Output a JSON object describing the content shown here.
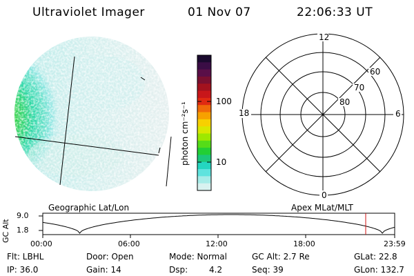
{
  "header": {
    "instrument": "Ultraviolet Imager",
    "date": "01 Nov 07",
    "time": "22:06:33 UT"
  },
  "colorbar": {
    "unit_label": "photon cm⁻²s⁻¹",
    "ticks": [
      "100",
      "10"
    ],
    "colors": [
      "#1a0a2e",
      "#3a0d45",
      "#5a0f48",
      "#7a1030",
      "#a3121e",
      "#c8161a",
      "#e02a12",
      "#f06a0a",
      "#f7a100",
      "#f7d000",
      "#d9e800",
      "#9ee800",
      "#55dc18",
      "#22cf35",
      "#1cc77a",
      "#24d6c0",
      "#5fe3de",
      "#a6ece8",
      "#d8f2f0"
    ]
  },
  "polar_grid": {
    "labels": {
      "top": "12",
      "left": "18",
      "right": "6",
      "bottom": "0"
    },
    "rings": [
      "60",
      "70",
      "80"
    ]
  },
  "timeline": {
    "left_title": "Geographic Lat/Lon",
    "right_title": "Apex  MLat/MLT",
    "axis_title": "GC Alt",
    "y_ticks": [
      "9.0",
      "1.8"
    ],
    "x_ticks": [
      "00:00",
      "06:00",
      "12:00",
      "18:00",
      "23:59"
    ],
    "marker_color": "#d01010"
  },
  "info": {
    "flt": "Flt: LBHL",
    "door": "Door: Open",
    "mode": "Mode: Normal",
    "gcalt": "GC Alt: 2.7 Re",
    "glat": "GLat:  22.8",
    "ip": "IP: 36.0",
    "gain": "Gain: 14",
    "dsp_label": "Dsp:",
    "dsp_value": "4.2",
    "seq": "Seq: 39",
    "glon": "GLon: 132.7"
  }
}
